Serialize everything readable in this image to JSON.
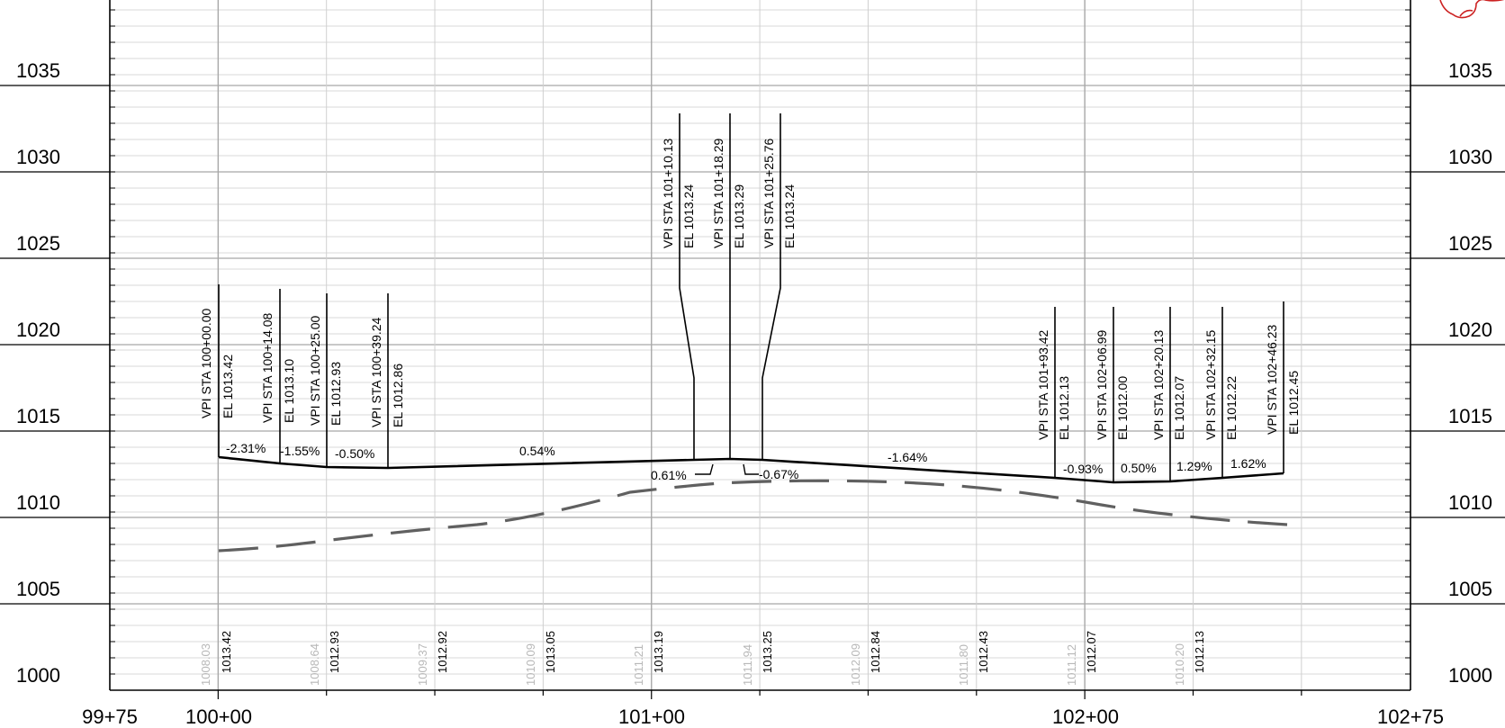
{
  "profile": {
    "station_labels": [
      "99+75",
      "100+00",
      "101+00",
      "102+00",
      "102+75"
    ],
    "elevation_labels": [
      "1035",
      "1030",
      "1025",
      "1020",
      "1015",
      "1010",
      "1005",
      "1000"
    ],
    "vpi_callouts": [
      {
        "sta": "VPI STA 100+00.00",
        "el": "EL 1013.42"
      },
      {
        "sta": "VPI STA 100+14.08",
        "el": "EL 1013.10"
      },
      {
        "sta": "VPI STA 100+25.00",
        "el": "EL 1012.93"
      },
      {
        "sta": "VPI STA 100+39.24",
        "el": "EL 1012.86"
      },
      {
        "sta": "VPI STA 101+10.13",
        "el": "EL 1013.24"
      },
      {
        "sta": "VPI STA 101+18.29",
        "el": "EL 1013.29"
      },
      {
        "sta": "VPI STA 101+25.76",
        "el": "EL 1013.24"
      },
      {
        "sta": "VPI STA 101+93.42",
        "el": "EL 1012.13"
      },
      {
        "sta": "VPI STA 102+06.99",
        "el": "EL 1012.00"
      },
      {
        "sta": "VPI STA 102+20.13",
        "el": "EL 1012.07"
      },
      {
        "sta": "VPI STA 102+32.15",
        "el": "EL 1012.22"
      },
      {
        "sta": "VPI STA 102+46.23",
        "el": "EL 1012.45"
      }
    ],
    "grades": [
      "-2.31%",
      "-1.55%",
      "-0.50%",
      "0.54%",
      "0.61%",
      "-0.67%",
      "-1.64%",
      "-0.93%",
      "0.50%",
      "1.29%",
      "1.62%"
    ],
    "bottom_values": [
      {
        "existing": "1008.03",
        "proposed": "1013.42"
      },
      {
        "existing": "1008.64",
        "proposed": "1012.93"
      },
      {
        "existing": "1009.37",
        "proposed": "1012.92"
      },
      {
        "existing": "1010.09",
        "proposed": "1013.05"
      },
      {
        "existing": "1011.21",
        "proposed": "1013.19"
      },
      {
        "existing": "1011.94",
        "proposed": "1013.25"
      },
      {
        "existing": "1012.09",
        "proposed": "1012.84"
      },
      {
        "existing": "1011.80",
        "proposed": "1012.43"
      },
      {
        "existing": "1011.12",
        "proposed": "1012.07"
      },
      {
        "existing": "1010.20",
        "proposed": "1012.13"
      }
    ]
  }
}
